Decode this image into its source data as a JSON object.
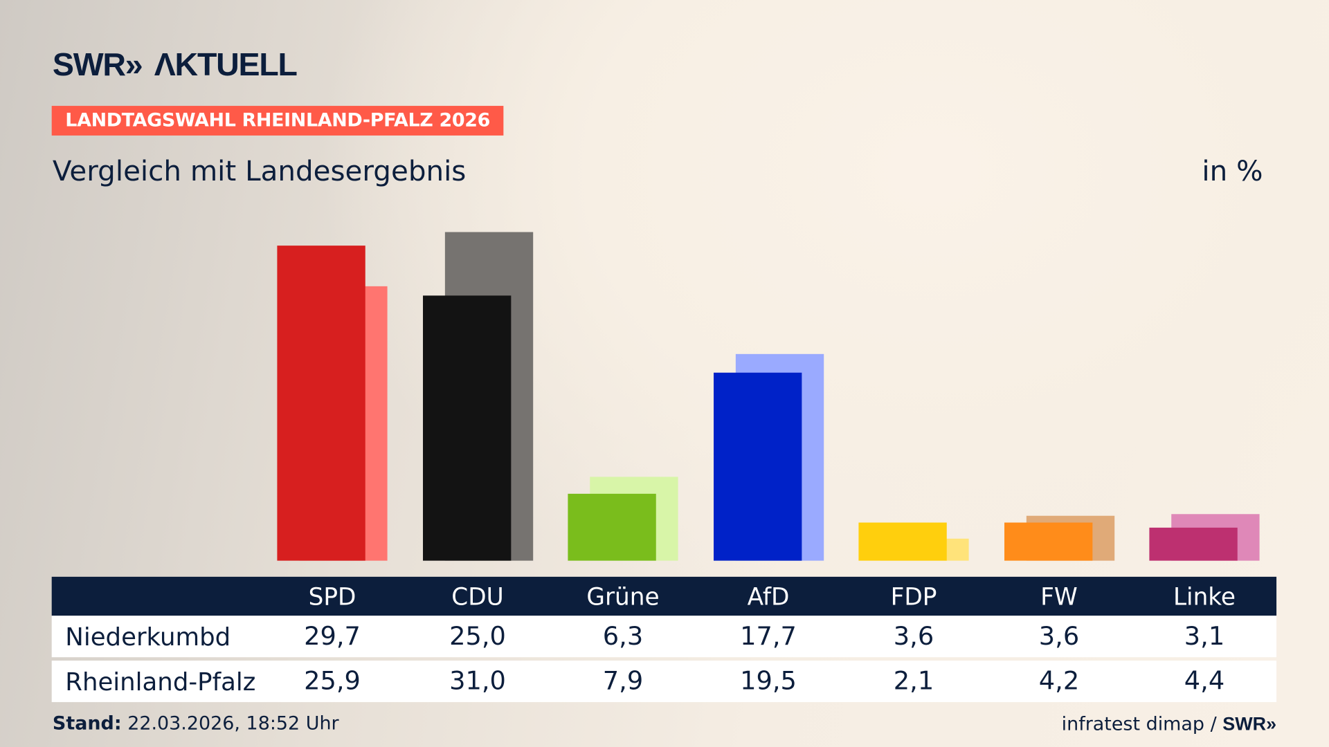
{
  "logo": "SWR» AKTUELL",
  "tag": "LANDTAGSWAHL RHEINLAND-PFALZ 2026",
  "subtitle": "Vergleich mit Landesergebnis",
  "unit": "in %",
  "footer": {
    "stand_label": "Stand:",
    "stand_value": "22.03.2026, 18:52 Uhr",
    "source": "infratest dimap /",
    "source_logo": "SWR»"
  },
  "chart_data": {
    "type": "bar",
    "categories": [
      "SPD",
      "CDU",
      "Grüne",
      "AfD",
      "FDP",
      "FW",
      "Linke"
    ],
    "series": [
      {
        "name": "Niederkumbd",
        "values": [
          29.7,
          25.0,
          6.3,
          17.7,
          3.6,
          3.6,
          3.1
        ],
        "colors": [
          "#d71f1f",
          "#131313",
          "#7abd1c",
          "#0022c8",
          "#ffcf0d",
          "#ff8c1a",
          "#bd3070"
        ]
      },
      {
        "name": "Rheinland-Pfalz",
        "values": [
          25.9,
          31.0,
          7.9,
          19.5,
          2.1,
          4.2,
          4.4
        ],
        "colors": [
          "#ff7570",
          "#767370",
          "#d8f5a8",
          "#9aaaff",
          "#ffe37a",
          "#e0aa78",
          "#df88b8"
        ]
      }
    ],
    "labels": [
      [
        "29,7",
        "25,0",
        "6,3",
        "17,7",
        "3,6",
        "3,6",
        "3,1"
      ],
      [
        "25,9",
        "31,0",
        "7,9",
        "19,5",
        "2,1",
        "4,2",
        "4,4"
      ]
    ],
    "ylim": [
      0,
      31.0
    ]
  }
}
